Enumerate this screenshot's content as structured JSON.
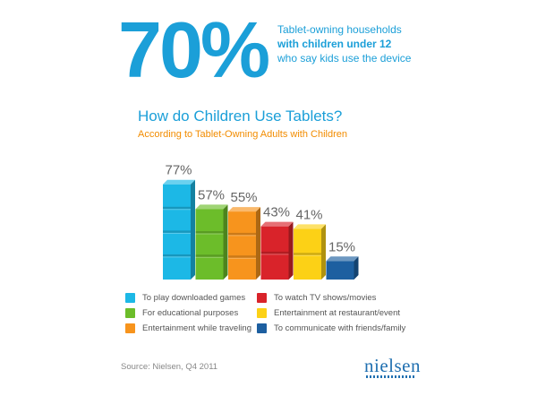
{
  "headline": {
    "stat": "70%",
    "line1": "Tablet-owning households",
    "line2": "with children under 12",
    "line3": "who say kids use the device"
  },
  "chart_data": {
    "type": "bar",
    "title": "How do Children Use Tablets?",
    "subtitle": "According to Tablet-Owning Adults with Children",
    "ylim": [
      0,
      100
    ],
    "categories": [
      "To play downloaded games",
      "For educational purposes",
      "Entertainment while traveling",
      "To watch TV shows/movies",
      "Entertainment at restaurant/event",
      "To communicate with friends/family"
    ],
    "values": [
      77,
      57,
      55,
      43,
      41,
      15
    ],
    "labels": [
      "77%",
      "57%",
      "55%",
      "43%",
      "41%",
      "15%"
    ],
    "colors": [
      "#1cb8e6",
      "#6cbd2a",
      "#f7941d",
      "#d9232a",
      "#fcd116",
      "#1d5fa0"
    ]
  },
  "source": "Source: Nielsen, Q4 2011",
  "brand": "nielsen"
}
